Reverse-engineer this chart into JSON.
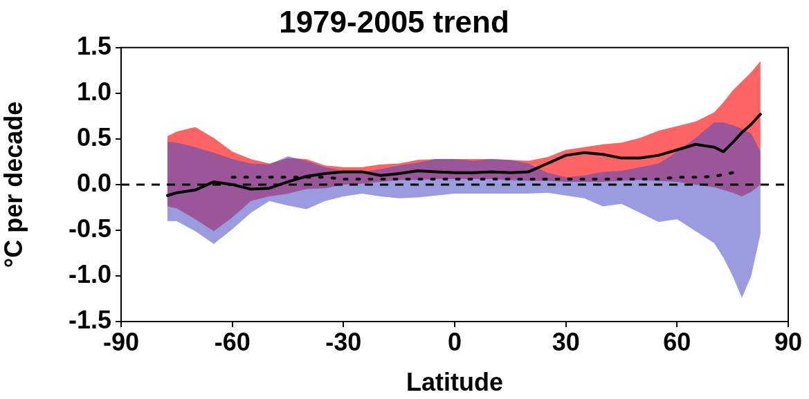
{
  "chart_data": {
    "type": "line",
    "title": "1979-2005 trend",
    "xlabel": "Latitude",
    "ylabel": "°C per decade",
    "x": [
      -77.5,
      -75,
      -70,
      -65,
      -60,
      -55,
      -50,
      -45,
      -40,
      -35,
      -30,
      -25,
      -20,
      -15,
      -10,
      -5,
      0,
      5,
      10,
      15,
      20,
      25,
      30,
      35,
      40,
      45,
      50,
      55,
      60,
      65,
      70,
      72.5,
      75,
      77.5,
      80,
      82.5
    ],
    "xlim": [
      -90,
      90
    ],
    "xticks": [
      -90,
      -60,
      -30,
      0,
      30,
      60,
      90
    ],
    "ylim": [
      -1.5,
      1.5
    ],
    "yticks": [
      -1.5,
      {
        "value": -1,
        "label": "-1.0"
      },
      -0.5,
      {
        "value": 0,
        "label": "0.0"
      },
      0.5,
      {
        "value": 1,
        "label": "1.0"
      },
      1.5
    ],
    "series": [
      {
        "type": "area",
        "color": "#ff6464",
        "values": [
          null,
          null,
          null,
          null,
          null,
          null,
          null,
          null,
          null,
          null,
          null,
          null,
          null,
          null,
          null,
          null,
          null,
          null,
          null,
          null,
          null,
          null,
          null,
          null,
          null,
          null,
          null,
          null,
          null,
          null,
          null,
          null,
          null,
          null,
          null,
          null
        ],
        "lower": [
          -0.24,
          -0.26,
          -0.38,
          -0.51,
          -0.36,
          -0.18,
          -0.13,
          -0.1,
          -0.05,
          -0.04,
          0.0,
          0.01,
          0.03,
          0.05,
          0.05,
          0.06,
          0.06,
          0.06,
          0.06,
          0.05,
          0.04,
          0.04,
          0.03,
          0.03,
          0.03,
          0.04,
          0.05,
          0.04,
          0.03,
          0.0,
          -0.03,
          -0.06,
          -0.09,
          -0.13,
          -0.08,
          0.0
        ],
        "upper": [
          0.53,
          0.58,
          0.63,
          0.51,
          0.36,
          0.28,
          0.23,
          0.29,
          0.28,
          0.21,
          0.19,
          0.19,
          0.22,
          0.23,
          0.27,
          0.28,
          0.28,
          0.28,
          0.28,
          0.27,
          0.26,
          0.3,
          0.38,
          0.41,
          0.44,
          0.46,
          0.51,
          0.59,
          0.64,
          0.69,
          0.79,
          0.9,
          1.03,
          1.13,
          1.23,
          1.35
        ]
      },
      {
        "type": "area",
        "color": "#4848c4",
        "values": [
          null,
          null,
          null,
          null,
          null,
          null,
          null,
          null,
          null,
          null,
          null,
          null,
          null,
          null,
          null,
          null,
          null,
          null,
          null,
          null,
          null,
          null,
          null,
          null,
          null,
          null,
          null,
          null,
          null,
          null,
          null,
          null,
          null,
          null,
          null,
          null
        ],
        "lower": [
          -0.4,
          -0.4,
          -0.51,
          -0.65,
          -0.49,
          -0.31,
          -0.18,
          -0.23,
          -0.27,
          -0.18,
          -0.13,
          -0.1,
          -0.13,
          -0.15,
          -0.14,
          -0.12,
          -0.1,
          -0.1,
          -0.1,
          -0.1,
          -0.1,
          -0.09,
          -0.12,
          -0.15,
          -0.24,
          -0.21,
          -0.31,
          -0.41,
          -0.38,
          -0.51,
          -0.64,
          -0.8,
          -1.0,
          -1.24,
          -1.0,
          -0.54
        ],
        "upper": [
          0.47,
          0.46,
          0.41,
          0.35,
          0.28,
          0.23,
          0.22,
          0.31,
          0.26,
          0.19,
          0.15,
          0.14,
          0.17,
          0.21,
          0.24,
          0.28,
          0.28,
          0.26,
          0.28,
          0.27,
          0.23,
          0.13,
          0.08,
          0.1,
          0.14,
          0.15,
          0.19,
          0.23,
          0.36,
          0.51,
          0.68,
          0.68,
          0.65,
          0.61,
          0.56,
          0.36
        ]
      },
      {
        "type": "line",
        "color": "#000000",
        "line_style": "solid",
        "values": [
          -0.12,
          -0.09,
          -0.06,
          0.03,
          0.0,
          -0.05,
          -0.04,
          0.03,
          0.09,
          0.12,
          0.14,
          0.14,
          0.1,
          0.12,
          0.15,
          0.14,
          0.13,
          0.13,
          0.14,
          0.13,
          0.14,
          0.23,
          0.32,
          0.35,
          0.33,
          0.29,
          0.29,
          0.32,
          0.38,
          0.44,
          0.41,
          0.36,
          0.46,
          0.57,
          0.66,
          0.77
        ]
      },
      {
        "type": "line",
        "color": "#000000",
        "line_style": "dotted",
        "values": [
          null,
          null,
          null,
          null,
          0.08,
          0.08,
          0.08,
          0.08,
          0.08,
          0.08,
          0.06,
          0.06,
          0.06,
          0.06,
          0.06,
          0.06,
          0.06,
          0.06,
          0.06,
          0.06,
          0.06,
          0.06,
          0.06,
          0.06,
          0.06,
          0.06,
          0.06,
          0.06,
          0.08,
          0.08,
          0.09,
          0.11,
          0.13,
          null,
          null,
          null
        ]
      }
    ],
    "ref_lines": [
      {
        "axis": "y",
        "value": 0,
        "color": "#000000",
        "line_style": "dashed"
      }
    ],
    "grid": false,
    "legend": false,
    "marker": "none"
  }
}
